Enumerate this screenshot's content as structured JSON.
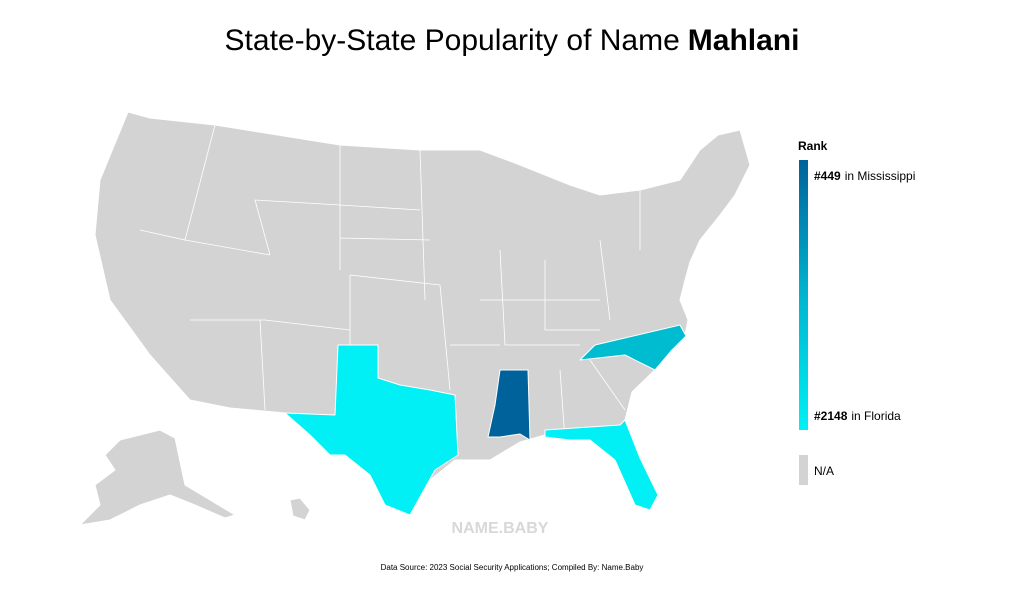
{
  "title": {
    "text": "State-by-State Popularity of Name",
    "name": "Mahlani"
  },
  "legend": {
    "title": "Rank",
    "top": {
      "rank": "#449",
      "label": "in Mississippi"
    },
    "bottom": {
      "rank": "#2148",
      "label": "in Florida"
    },
    "na": "N/A"
  },
  "watermark": "NAME.BABY",
  "source": "Data Source: 2023 Social Security Applications; Compiled By: Name.Baby"
}
